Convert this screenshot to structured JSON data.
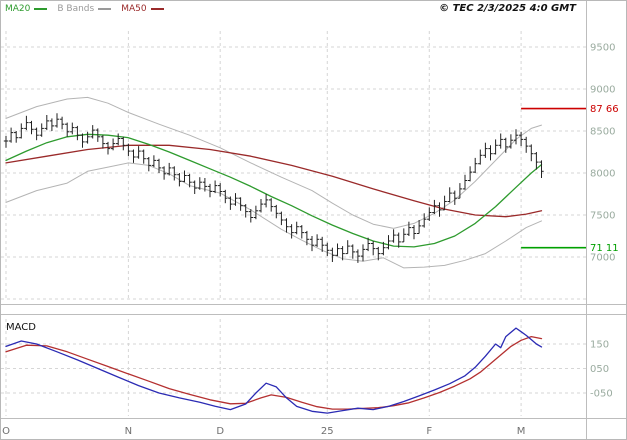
{
  "legend": {
    "items": [
      {
        "label": "MA20",
        "color": "#2e9b2e"
      },
      {
        "label": "B Bands",
        "color": "#9a9a9a"
      },
      {
        "label": "MA50",
        "color": "#9a2a2a"
      }
    ]
  },
  "copyright": "© TEC 2/3/2025 4:0 GMT",
  "macd_label": "MACD",
  "chart_data": {
    "type": "candlestick",
    "title": "Daily price chart with Bollinger Bands, MA20, MA50 and MACD",
    "colors": {
      "bars": "#222222",
      "ma20": "#2e9b2e",
      "ma50": "#9a2a2a",
      "bbands": "#b4b4b4",
      "macd": "#2b2bb4",
      "signal": "#b43030",
      "grid": "#d6d6d6",
      "separator": "#bdbdbd",
      "price_tick_labels": "#9aab9f",
      "x_labels": "#6f6f6f"
    },
    "months": {
      "labels": [
        "O",
        "N",
        "D",
        "25",
        "F",
        "M"
      ],
      "start_indices": [
        0,
        24,
        42,
        63,
        83,
        101
      ]
    },
    "price_panel": {
      "ylim": [
        6476,
        9690
      ],
      "ticks": [
        9500,
        9000,
        8500,
        8000,
        7500,
        7000
      ],
      "extra_gridlines": [
        6500
      ],
      "grid": "dashed",
      "levels": [
        {
          "value": 8766,
          "label": "87 66",
          "color": "#cc0000",
          "role": "resistance"
        },
        {
          "value": 7111,
          "label": "71 11",
          "color": "#00a000",
          "role": "support"
        }
      ],
      "bars_hlc": [
        [
          8440,
          8300,
          8380
        ],
        [
          8540,
          8360,
          8480
        ],
        [
          8500,
          8360,
          8420
        ],
        [
          8590,
          8410,
          8530
        ],
        [
          8680,
          8510,
          8600
        ],
        [
          8620,
          8460,
          8520
        ],
        [
          8540,
          8390,
          8450
        ],
        [
          8590,
          8430,
          8530
        ],
        [
          8690,
          8510,
          8620
        ],
        [
          8650,
          8500,
          8560
        ],
        [
          8710,
          8540,
          8640
        ],
        [
          8670,
          8520,
          8580
        ],
        [
          8600,
          8430,
          8490
        ],
        [
          8600,
          8460,
          8540
        ],
        [
          8560,
          8390,
          8450
        ],
        [
          8470,
          8300,
          8370
        ],
        [
          8490,
          8350,
          8430
        ],
        [
          8570,
          8410,
          8510
        ],
        [
          8530,
          8370,
          8430
        ],
        [
          8450,
          8290,
          8350
        ],
        [
          8370,
          8220,
          8290
        ],
        [
          8410,
          8270,
          8350
        ],
        [
          8470,
          8330,
          8410
        ],
        [
          8430,
          8270,
          8330
        ],
        [
          8350,
          8200,
          8260
        ],
        [
          8280,
          8120,
          8190
        ],
        [
          8320,
          8170,
          8260
        ],
        [
          8280,
          8110,
          8170
        ],
        [
          8190,
          8020,
          8090
        ],
        [
          8210,
          8070,
          8150
        ],
        [
          8170,
          8000,
          8060
        ],
        [
          8080,
          7920,
          7990
        ],
        [
          8120,
          7970,
          8060
        ],
        [
          8080,
          7910,
          7980
        ],
        [
          8000,
          7840,
          7900
        ],
        [
          8030,
          7890,
          7970
        ],
        [
          7990,
          7830,
          7890
        ],
        [
          7910,
          7750,
          7820
        ],
        [
          7950,
          7800,
          7890
        ],
        [
          7940,
          7780,
          7840
        ],
        [
          7870,
          7710,
          7780
        ],
        [
          7910,
          7760,
          7850
        ],
        [
          7880,
          7720,
          7780
        ],
        [
          7800,
          7640,
          7700
        ],
        [
          7720,
          7560,
          7630
        ],
        [
          7760,
          7610,
          7700
        ],
        [
          7710,
          7550,
          7610
        ],
        [
          7630,
          7470,
          7540
        ],
        [
          7570,
          7410,
          7470
        ],
        [
          7610,
          7450,
          7550
        ],
        [
          7690,
          7530,
          7630
        ],
        [
          7750,
          7590,
          7680
        ],
        [
          7700,
          7540,
          7600
        ],
        [
          7620,
          7460,
          7520
        ],
        [
          7540,
          7380,
          7440
        ],
        [
          7460,
          7290,
          7360
        ],
        [
          7390,
          7220,
          7290
        ],
        [
          7420,
          7270,
          7360
        ],
        [
          7380,
          7220,
          7290
        ],
        [
          7310,
          7140,
          7210
        ],
        [
          7250,
          7070,
          7140
        ],
        [
          7270,
          7120,
          7210
        ],
        [
          7240,
          7060,
          7140
        ],
        [
          7170,
          7010,
          7080
        ],
        [
          7110,
          6940,
          7020
        ],
        [
          7160,
          7010,
          7100
        ],
        [
          7130,
          6960,
          7040
        ],
        [
          7200,
          7040,
          7130
        ],
        [
          7150,
          6980,
          7060
        ],
        [
          7090,
          6930,
          7010
        ],
        [
          7150,
          6950,
          7090
        ],
        [
          7230,
          7070,
          7160
        ],
        [
          7190,
          7020,
          7100
        ],
        [
          7120,
          6960,
          7040
        ],
        [
          7180,
          7020,
          7110
        ],
        [
          7260,
          7090,
          7190
        ],
        [
          7330,
          7170,
          7260
        ],
        [
          7290,
          7110,
          7180
        ],
        [
          7340,
          7180,
          7270
        ],
        [
          7420,
          7250,
          7350
        ],
        [
          7380,
          7210,
          7280
        ],
        [
          7440,
          7280,
          7370
        ],
        [
          7520,
          7350,
          7450
        ],
        [
          7590,
          7430,
          7530
        ],
        [
          7680,
          7510,
          7610
        ],
        [
          7650,
          7480,
          7560
        ],
        [
          7730,
          7560,
          7660
        ],
        [
          7830,
          7650,
          7760
        ],
        [
          7790,
          7620,
          7700
        ],
        [
          7880,
          7700,
          7810
        ],
        [
          7980,
          7800,
          7910
        ],
        [
          8080,
          7900,
          8010
        ],
        [
          8180,
          8000,
          8110
        ],
        [
          8280,
          8100,
          8210
        ],
        [
          8360,
          8180,
          8290
        ],
        [
          8330,
          8150,
          8230
        ],
        [
          8400,
          8220,
          8330
        ],
        [
          8470,
          8290,
          8400
        ],
        [
          8420,
          8240,
          8310
        ],
        [
          8460,
          8290,
          8390
        ],
        [
          8520,
          8340,
          8450
        ],
        [
          8490,
          8320,
          8400
        ],
        [
          8430,
          8240,
          8320
        ],
        [
          8340,
          8140,
          8230
        ],
        [
          8250,
          8040,
          8130
        ],
        [
          8150,
          7940,
          8020
        ]
      ],
      "ma20": [
        [
          0,
          8150
        ],
        [
          4,
          8260
        ],
        [
          8,
          8360
        ],
        [
          12,
          8430
        ],
        [
          16,
          8460
        ],
        [
          20,
          8450
        ],
        [
          24,
          8420
        ],
        [
          28,
          8340
        ],
        [
          32,
          8250
        ],
        [
          36,
          8150
        ],
        [
          40,
          8050
        ],
        [
          44,
          7950
        ],
        [
          48,
          7840
        ],
        [
          52,
          7720
        ],
        [
          56,
          7610
        ],
        [
          60,
          7490
        ],
        [
          64,
          7380
        ],
        [
          68,
          7280
        ],
        [
          72,
          7190
        ],
        [
          76,
          7130
        ],
        [
          80,
          7120
        ],
        [
          84,
          7160
        ],
        [
          88,
          7250
        ],
        [
          92,
          7400
        ],
        [
          96,
          7600
        ],
        [
          100,
          7830
        ],
        [
          103,
          8000
        ],
        [
          105,
          8100
        ]
      ],
      "ma50": [
        [
          0,
          8120
        ],
        [
          8,
          8200
        ],
        [
          16,
          8280
        ],
        [
          24,
          8330
        ],
        [
          32,
          8330
        ],
        [
          40,
          8280
        ],
        [
          48,
          8200
        ],
        [
          56,
          8090
        ],
        [
          64,
          7960
        ],
        [
          72,
          7810
        ],
        [
          80,
          7670
        ],
        [
          86,
          7570
        ],
        [
          92,
          7500
        ],
        [
          98,
          7480
        ],
        [
          102,
          7510
        ],
        [
          105,
          7550
        ]
      ],
      "bb_upper": [
        [
          0,
          8650
        ],
        [
          6,
          8790
        ],
        [
          12,
          8880
        ],
        [
          16,
          8900
        ],
        [
          20,
          8830
        ],
        [
          24,
          8720
        ],
        [
          30,
          8580
        ],
        [
          36,
          8450
        ],
        [
          42,
          8300
        ],
        [
          48,
          8120
        ],
        [
          54,
          7950
        ],
        [
          60,
          7790
        ],
        [
          64,
          7640
        ],
        [
          68,
          7500
        ],
        [
          72,
          7390
        ],
        [
          76,
          7340
        ],
        [
          80,
          7400
        ],
        [
          84,
          7520
        ],
        [
          88,
          7680
        ],
        [
          92,
          7900
        ],
        [
          96,
          8150
        ],
        [
          100,
          8400
        ],
        [
          103,
          8530
        ],
        [
          105,
          8570
        ]
      ],
      "bb_lower": [
        [
          0,
          7650
        ],
        [
          6,
          7790
        ],
        [
          12,
          7880
        ],
        [
          16,
          8020
        ],
        [
          20,
          8070
        ],
        [
          24,
          8120
        ],
        [
          28,
          8090
        ],
        [
          32,
          7990
        ],
        [
          36,
          7850
        ],
        [
          42,
          7760
        ],
        [
          48,
          7560
        ],
        [
          54,
          7330
        ],
        [
          58,
          7200
        ],
        [
          62,
          7080
        ],
        [
          66,
          6980
        ],
        [
          70,
          6950
        ],
        [
          74,
          6990
        ],
        [
          78,
          6870
        ],
        [
          82,
          6880
        ],
        [
          86,
          6900
        ],
        [
          90,
          6960
        ],
        [
          94,
          7040
        ],
        [
          98,
          7190
        ],
        [
          102,
          7350
        ],
        [
          105,
          7430
        ]
      ]
    },
    "macd_panel": {
      "ylim": [
        -144,
        252
      ],
      "ticks": [
        {
          "value": 150,
          "label": "150"
        },
        {
          "value": 50,
          "label": "050"
        },
        {
          "value": -50,
          "label": "-050"
        }
      ],
      "macd": [
        [
          0,
          140
        ],
        [
          3,
          162
        ],
        [
          6,
          150
        ],
        [
          10,
          118
        ],
        [
          14,
          85
        ],
        [
          18,
          50
        ],
        [
          22,
          15
        ],
        [
          26,
          -20
        ],
        [
          30,
          -50
        ],
        [
          34,
          -70
        ],
        [
          38,
          -88
        ],
        [
          41,
          -104
        ],
        [
          44,
          -118
        ],
        [
          47,
          -95
        ],
        [
          49,
          -50
        ],
        [
          51,
          -10
        ],
        [
          53,
          -25
        ],
        [
          55,
          -70
        ],
        [
          57,
          -105
        ],
        [
          60,
          -125
        ],
        [
          63,
          -132
        ],
        [
          66,
          -122
        ],
        [
          69,
          -112
        ],
        [
          72,
          -118
        ],
        [
          75,
          -105
        ],
        [
          78,
          -85
        ],
        [
          81,
          -62
        ],
        [
          84,
          -38
        ],
        [
          87,
          -12
        ],
        [
          90,
          20
        ],
        [
          92,
          55
        ],
        [
          94,
          100
        ],
        [
          96,
          150
        ],
        [
          97,
          135
        ],
        [
          98,
          180
        ],
        [
          100,
          215
        ],
        [
          101,
          200
        ],
        [
          102,
          185
        ],
        [
          103,
          168
        ],
        [
          104,
          150
        ],
        [
          105,
          138
        ]
      ],
      "signal": [
        [
          0,
          118
        ],
        [
          4,
          145
        ],
        [
          8,
          142
        ],
        [
          12,
          118
        ],
        [
          16,
          88
        ],
        [
          20,
          58
        ],
        [
          24,
          28
        ],
        [
          28,
          -2
        ],
        [
          32,
          -32
        ],
        [
          36,
          -56
        ],
        [
          40,
          -78
        ],
        [
          44,
          -94
        ],
        [
          47,
          -92
        ],
        [
          50,
          -70
        ],
        [
          52,
          -58
        ],
        [
          55,
          -68
        ],
        [
          58,
          -88
        ],
        [
          61,
          -106
        ],
        [
          64,
          -116
        ],
        [
          67,
          -116
        ],
        [
          70,
          -113
        ],
        [
          73,
          -110
        ],
        [
          76,
          -102
        ],
        [
          79,
          -90
        ],
        [
          82,
          -70
        ],
        [
          85,
          -48
        ],
        [
          88,
          -22
        ],
        [
          91,
          8
        ],
        [
          93,
          35
        ],
        [
          95,
          70
        ],
        [
          97,
          105
        ],
        [
          99,
          140
        ],
        [
          101,
          165
        ],
        [
          103,
          180
        ],
        [
          105,
          172
        ]
      ]
    }
  }
}
